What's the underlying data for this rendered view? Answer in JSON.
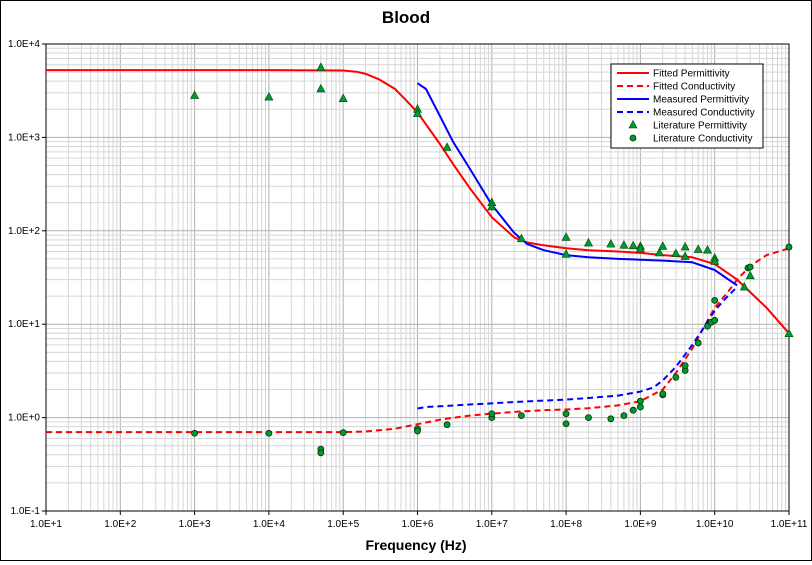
{
  "chart_data": {
    "type": "scatter",
    "title": "Blood",
    "xlabel": "Frequency (Hz)",
    "ylabel": "",
    "x_scale": "log",
    "y_scale": "log",
    "xlim": [
      10,
      100000000000
    ],
    "ylim": [
      0.1,
      10000
    ],
    "grid": true,
    "legend_position": "top-right",
    "x_ticks": [
      "1.0E+1",
      "1.0E+2",
      "1.0E+3",
      "1.0E+4",
      "1.0E+5",
      "1.0E+6",
      "1.0E+7",
      "1.0E+8",
      "1.0E+9",
      "1.0E+10",
      "1.0E+11"
    ],
    "y_ticks": [
      "1.0E-1",
      "1.0E+0",
      "1.0E+1",
      "1.0E+2",
      "1.0E+3",
      "1.0E+4"
    ],
    "series": [
      {
        "name": "Fitted Permittivity",
        "kind": "line",
        "style": "solid",
        "color": "#ff0000",
        "x": [
          10,
          100,
          1000,
          10000,
          100000,
          150000,
          200000,
          300000,
          500000,
          700000,
          1000000,
          2000000,
          3000000,
          5000000,
          10000000,
          20000000,
          30000000,
          50000000,
          100000000,
          200000000,
          500000000,
          1000000000,
          2000000000,
          5000000000,
          10000000000,
          20000000000,
          50000000000,
          100000000000
        ],
        "y": [
          5250,
          5250,
          5250,
          5250,
          5200,
          5050,
          4800,
          4200,
          3300,
          2500,
          1850,
          850,
          520,
          290,
          140,
          85,
          75,
          70,
          65,
          62,
          60,
          58,
          55,
          52,
          44,
          30,
          15,
          8
        ]
      },
      {
        "name": "Fitted Conductivity",
        "kind": "line",
        "style": "dashed",
        "color": "#ff0000",
        "x": [
          10,
          100,
          1000,
          10000,
          100000,
          200000,
          500000,
          1000000,
          2000000,
          5000000,
          10000000,
          20000000,
          50000000,
          100000000,
          200000000,
          500000000,
          1000000000,
          2000000000,
          3000000000,
          5000000000,
          7000000000,
          10000000000,
          15000000000,
          20000000000,
          30000000000,
          50000000000,
          100000000000
        ],
        "y": [
          0.7,
          0.7,
          0.7,
          0.7,
          0.7,
          0.71,
          0.76,
          0.85,
          0.95,
          1.05,
          1.1,
          1.15,
          1.2,
          1.22,
          1.26,
          1.35,
          1.5,
          2,
          3,
          5.5,
          9,
          15,
          22,
          30,
          42,
          55,
          65
        ]
      },
      {
        "name": "Measured Permittivity",
        "kind": "line",
        "style": "solid",
        "color": "#0000ff",
        "x": [
          1000000,
          1300000,
          2000000,
          3000000,
          5000000,
          10000000,
          20000000,
          30000000,
          50000000,
          100000000,
          200000000,
          500000000,
          1000000000,
          2000000000,
          5000000000,
          10000000000,
          20000000000
        ],
        "y": [
          3800,
          3300,
          1700,
          900,
          470,
          190,
          95,
          72,
          62,
          55,
          52,
          50,
          49,
          48,
          46,
          38,
          26
        ]
      },
      {
        "name": "Measured Conductivity",
        "kind": "line",
        "style": "dashed",
        "color": "#0000ff",
        "x": [
          1000000,
          1300000,
          2000000,
          5000000,
          10000000,
          20000000,
          50000000,
          100000000,
          200000000,
          500000000,
          1000000000,
          1500000000,
          2000000000,
          3000000000,
          5000000000,
          7000000000,
          10000000000,
          15000000000,
          20000000000
        ],
        "y": [
          1.25,
          1.3,
          1.32,
          1.38,
          1.42,
          1.47,
          1.52,
          1.56,
          1.62,
          1.72,
          1.9,
          2.1,
          2.5,
          3.5,
          6,
          9,
          14,
          20,
          25
        ]
      },
      {
        "name": "Literature Permittivity",
        "kind": "scatter",
        "marker": "triangle",
        "color": "#009933",
        "x": [
          1000,
          10000,
          50000,
          50000,
          100000,
          1000000,
          1000000,
          2500000,
          10000000,
          10000000,
          25000000,
          100000000,
          100000000,
          200000000,
          400000000,
          600000000,
          800000000,
          1000000000,
          1000000000,
          1800000000,
          2000000000,
          3000000000,
          4000000000,
          4000000000,
          6000000000,
          8000000000,
          10000000000,
          10000000000,
          25000000000,
          30000000000,
          100000000000
        ],
        "y": [
          2800,
          2700,
          5600,
          3300,
          2600,
          2000,
          1800,
          780,
          200,
          180,
          82,
          85,
          56,
          74,
          72,
          70,
          69,
          68,
          64,
          58,
          68,
          57,
          53,
          67,
          63,
          62,
          51,
          47,
          25,
          33,
          7.9
        ]
      },
      {
        "name": "Literature Conductivity",
        "kind": "scatter",
        "marker": "circle",
        "color": "#009933",
        "x": [
          1000,
          10000,
          50000,
          50000,
          100000,
          1000000,
          1000000,
          2500000,
          10000000,
          10000000,
          25000000,
          100000000,
          100000000,
          200000000,
          400000000,
          600000000,
          800000000,
          1000000000,
          1000000000,
          2000000000,
          2000000000,
          3000000000,
          4000000000,
          4000000000,
          6000000000,
          8000000000,
          9000000000,
          10000000000,
          10000000000,
          28000000000,
          30000000000,
          100000000000
        ],
        "y": [
          0.68,
          0.68,
          0.46,
          0.42,
          0.69,
          0.76,
          0.72,
          0.84,
          1.0,
          1.1,
          1.05,
          0.86,
          1.1,
          1.0,
          0.97,
          1.05,
          1.2,
          1.3,
          1.5,
          1.75,
          1.8,
          2.7,
          3.2,
          3.6,
          6.3,
          9.5,
          10.5,
          11.0,
          18,
          40,
          41,
          67
        ]
      }
    ]
  }
}
